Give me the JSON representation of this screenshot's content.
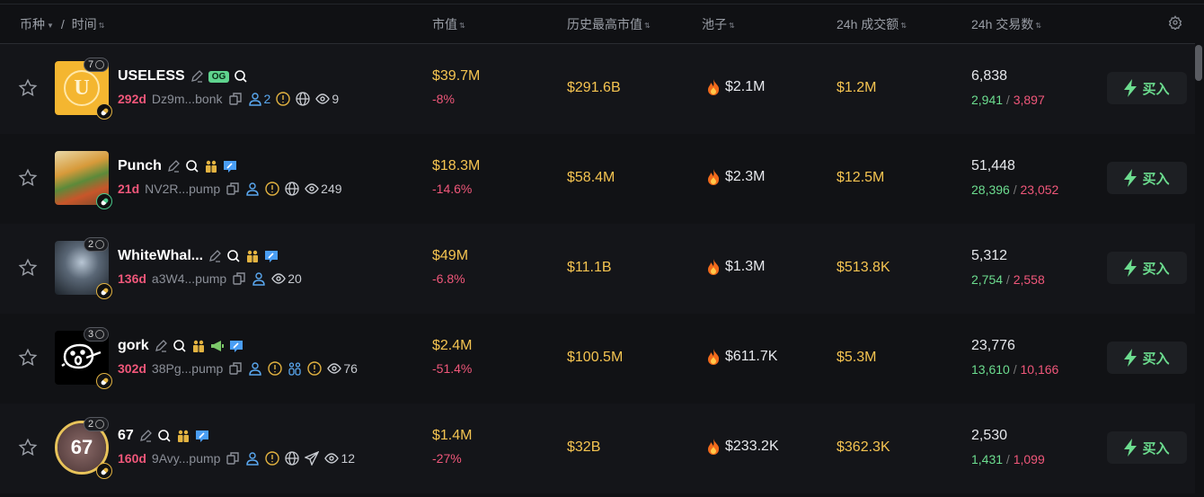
{
  "header": {
    "coin": "币种",
    "separator": "/",
    "time": "时间",
    "market_cap": "市值",
    "ath_market_cap": "历史最高市值",
    "pool": "池子",
    "volume_24h": "24h 成交额",
    "txns_24h": "24h 交易数",
    "settings_icon": "gear-icon"
  },
  "colors": {
    "positive": "#6cdd8f",
    "negative": "#f0577a",
    "value": "#f5c451",
    "age": "#f0577a"
  },
  "rows": [
    {
      "name": "USELESS",
      "og": "OG",
      "tags": [
        "edit",
        "search"
      ],
      "count_badge": "7",
      "avatar": {
        "type": "useless",
        "letter": "U"
      },
      "pill": "yellow",
      "age": "292d",
      "address": "Dz9m...bonk",
      "icons": [
        {
          "type": "copy"
        },
        {
          "type": "holders",
          "text": "2"
        },
        {
          "type": "warning"
        },
        {
          "type": "globe"
        },
        {
          "type": "eye",
          "text": "9"
        }
      ],
      "market_cap": "$39.7M",
      "change": "-8%",
      "ath": "$291.6B",
      "pool": "$2.1M",
      "volume": "$1.2M",
      "txns": "6,838",
      "buys": "2,941",
      "sells": "3,897",
      "buy_label": "买入"
    },
    {
      "name": "Punch",
      "tags": [
        "edit",
        "search",
        "dev",
        "dex"
      ],
      "count_badge": "",
      "avatar": {
        "type": "punch"
      },
      "pill": "green",
      "age": "21d",
      "address": "NV2R...pump",
      "icons": [
        {
          "type": "copy"
        },
        {
          "type": "holders"
        },
        {
          "type": "warning"
        },
        {
          "type": "globe"
        },
        {
          "type": "eye",
          "text": "249"
        }
      ],
      "market_cap": "$18.3M",
      "change": "-14.6%",
      "ath": "$58.4M",
      "pool": "$2.3M",
      "volume": "$12.5M",
      "txns": "51,448",
      "buys": "28,396",
      "sells": "23,052",
      "buy_label": "买入"
    },
    {
      "name": "WhiteWhal...",
      "tags": [
        "edit",
        "search",
        "dev",
        "dex"
      ],
      "count_badge": "2",
      "avatar": {
        "type": "whale"
      },
      "pill": "yellow",
      "age": "136d",
      "address": "a3W4...pump",
      "icons": [
        {
          "type": "copy"
        },
        {
          "type": "holders"
        },
        {
          "type": "eye",
          "text": "20"
        }
      ],
      "market_cap": "$49M",
      "change": "-6.8%",
      "ath": "$11.1B",
      "pool": "$1.3M",
      "volume": "$513.8K",
      "txns": "5,312",
      "buys": "2,754",
      "sells": "2,558",
      "buy_label": "买入"
    },
    {
      "name": "gork",
      "tags": [
        "edit",
        "search",
        "dev",
        "megaphone",
        "dex"
      ],
      "count_badge": "3",
      "avatar": {
        "type": "gork"
      },
      "pill": "yellow",
      "age": "302d",
      "address": "38Pg...pump",
      "icons": [
        {
          "type": "copy"
        },
        {
          "type": "holders"
        },
        {
          "type": "warning"
        },
        {
          "type": "group"
        },
        {
          "type": "warning"
        },
        {
          "type": "eye",
          "text": "76"
        }
      ],
      "market_cap": "$2.4M",
      "change": "-51.4%",
      "ath": "$100.5M",
      "pool": "$611.7K",
      "volume": "$5.3M",
      "txns": "23,776",
      "buys": "13,610",
      "sells": "10,166",
      "buy_label": "买入"
    },
    {
      "name": "67",
      "tags": [
        "edit",
        "search",
        "dev",
        "dex"
      ],
      "count_badge": "2",
      "avatar": {
        "type": "sixseven",
        "letter": "67"
      },
      "pill": "yellow",
      "age": "160d",
      "address": "9Avy...pump",
      "icons": [
        {
          "type": "copy"
        },
        {
          "type": "holders"
        },
        {
          "type": "warning"
        },
        {
          "type": "globe"
        },
        {
          "type": "telegram"
        },
        {
          "type": "eye",
          "text": "12"
        }
      ],
      "market_cap": "$1.4M",
      "change": "-27%",
      "ath": "$32B",
      "pool": "$233.2K",
      "volume": "$362.3K",
      "txns": "2,530",
      "buys": "1,431",
      "sells": "1,099",
      "buy_label": "买入"
    }
  ]
}
